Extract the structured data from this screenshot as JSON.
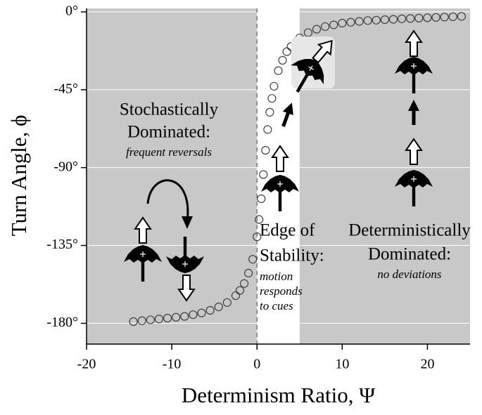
{
  "chart_data": {
    "type": "scatter",
    "x_label": "Determinism Ratio, Ψ",
    "y_label": "Turn Angle, ϕ",
    "xlim": [
      -20,
      25
    ],
    "ylim": [
      -192,
      2
    ],
    "xticks": [
      -20,
      -10,
      0,
      10,
      20
    ],
    "yticks": [
      {
        "value": 0,
        "label": "0°"
      },
      {
        "value": -45,
        "label": "-45°"
      },
      {
        "value": -90,
        "label": "-90°"
      },
      {
        "value": -135,
        "label": "-135°"
      },
      {
        "value": -180,
        "label": "-180°"
      }
    ],
    "grid": true,
    "background_color": "#c8c8c8",
    "edge_band": [
      0,
      5
    ],
    "series": [
      {
        "color": "#333333",
        "x": [
          -14.5,
          -13.5,
          -12.5,
          -11.5,
          -10.5,
          -9.5,
          -8.5,
          -7.5,
          -6.5,
          -5.5,
          -4.5,
          -3.5,
          -2.5,
          -2,
          -1.5,
          -1,
          -0.5,
          0,
          0.25,
          0.5,
          0.75,
          1,
          1.25,
          1.5,
          1.75,
          2,
          2.5,
          3,
          3.5,
          4,
          5,
          6,
          7,
          8,
          9,
          10,
          11,
          12,
          13,
          14,
          15,
          16,
          17,
          18,
          19,
          20,
          21,
          22,
          23,
          24
        ],
        "values": [
          -179,
          -178.5,
          -178,
          -177.5,
          -177,
          -176.5,
          -176,
          -175,
          -174,
          -172.5,
          -170.5,
          -168,
          -164,
          -161,
          -157,
          -151,
          -143,
          -130,
          -120,
          -108,
          -94,
          -80,
          -68,
          -58,
          -50,
          -43,
          -34,
          -28,
          -23,
          -20,
          -15,
          -12,
          -10,
          -8.5,
          -7.5,
          -6.5,
          -6,
          -5.5,
          -5,
          -4.8,
          -4.5,
          -4.3,
          -4,
          -3.8,
          -3.6,
          -3.4,
          -3.2,
          -3,
          -2.8,
          -2.6
        ]
      }
    ],
    "annotations": [
      {
        "title": [
          "Stochastically",
          "Dominated:"
        ],
        "note": [
          "frequent reversals"
        ]
      },
      {
        "title": [
          "Edge of",
          "Stability:"
        ],
        "note": [
          "motion",
          "responds",
          "to cues"
        ]
      },
      {
        "title": [
          "Deterministically",
          "Dominated:"
        ],
        "note": [
          "no deviations"
        ]
      }
    ]
  }
}
